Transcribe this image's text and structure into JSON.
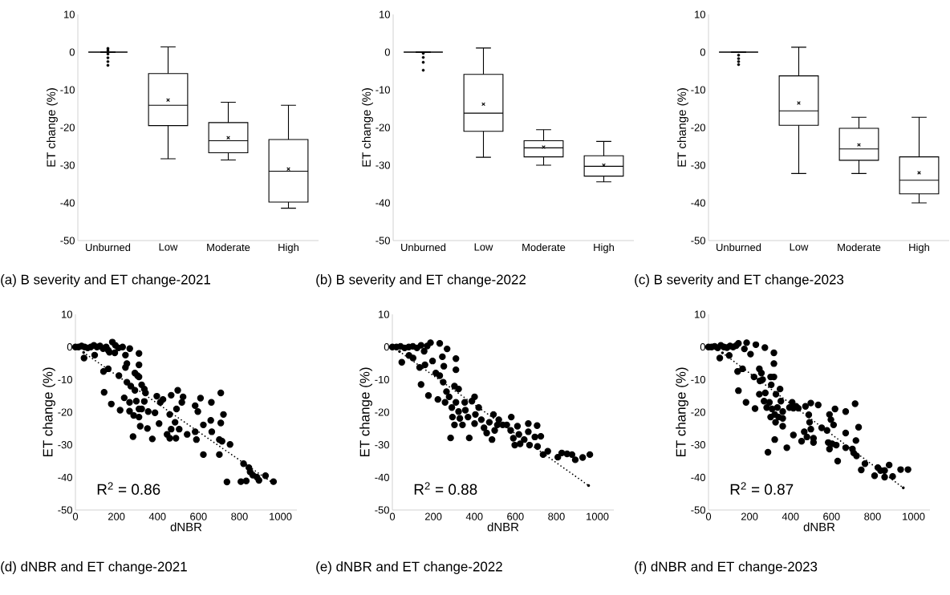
{
  "chart_data": [
    {
      "type": "box",
      "title": "(a) B severity and ET change-2021",
      "ylabel": "ET change (%)",
      "categories": [
        "Unburned",
        "Low",
        "Moderate",
        "High"
      ],
      "color": "#000000",
      "ylim": [
        -50,
        10
      ],
      "yticks": [
        -50,
        -40,
        -30,
        -20,
        -10,
        0,
        10
      ],
      "boxes": [
        {
          "low": 0,
          "q1": 0,
          "median": 0,
          "q3": 0,
          "high": 0,
          "outliers": [
            1,
            0.5,
            -0.5,
            -1.5,
            -2.5,
            -3.5
          ]
        },
        {
          "low": -28.3,
          "q1": -19.5,
          "median": -14.1,
          "q3": -5.7,
          "high": 1.4,
          "mean": -12.7
        },
        {
          "low": -28.6,
          "q1": -26.7,
          "median": -23.5,
          "q3": -18.7,
          "high": -13.3,
          "mean": -22.7
        },
        {
          "low": -41.4,
          "q1": -39.8,
          "median": -31.6,
          "q3": -23.2,
          "high": -14.1,
          "mean": -31
        }
      ]
    },
    {
      "type": "box",
      "title": "(b) B severity and ET change-2022",
      "ylabel": "ET change (%)",
      "categories": [
        "Unburned",
        "Low",
        "Moderate",
        "High"
      ],
      "color": "#000000",
      "ylim": [
        -50,
        10
      ],
      "yticks": [
        -50,
        -40,
        -30,
        -20,
        -10,
        0,
        10
      ],
      "boxes": [
        {
          "low": 0,
          "q1": 0,
          "median": 0,
          "q3": 0,
          "high": 0,
          "outliers": [
            -0.3,
            -1.4,
            -2.7,
            -4.8
          ]
        },
        {
          "low": -27.9,
          "q1": -21,
          "median": -16.2,
          "q3": -5.9,
          "high": 1.1,
          "mean": -13.8
        },
        {
          "low": -30,
          "q1": -27.8,
          "median": -25.4,
          "q3": -23.5,
          "high": -20.6,
          "mean": -25.2
        },
        {
          "low": -34.4,
          "q1": -32.9,
          "median": -30.3,
          "q3": -27.5,
          "high": -23.7,
          "mean": -30
        }
      ]
    },
    {
      "type": "box",
      "title": "(c) B severity and ET change-2023",
      "ylabel": "ET change (%)",
      "categories": [
        "Unburned",
        "Low",
        "Moderate",
        "High"
      ],
      "color": "#000000",
      "ylim": [
        -50,
        10
      ],
      "yticks": [
        -50,
        -40,
        -30,
        -20,
        -10,
        0,
        10
      ],
      "boxes": [
        {
          "low": 0,
          "q1": 0,
          "median": 0,
          "q3": 0,
          "high": 0,
          "outliers": [
            -0.8,
            -1.7,
            -2.5,
            -3.3
          ]
        },
        {
          "low": -32.2,
          "q1": -19.4,
          "median": -15.6,
          "q3": -6.3,
          "high": 1.3,
          "mean": -13.5
        },
        {
          "low": -32.2,
          "q1": -28.7,
          "median": -25.7,
          "q3": -20.2,
          "high": -17.3,
          "mean": -24.6
        },
        {
          "low": -40,
          "q1": -37.6,
          "median": -34,
          "q3": -27.8,
          "high": -17.3,
          "mean": -32
        }
      ]
    },
    {
      "type": "scatter",
      "title": "(d) dNBR and ET change-2021",
      "xlabel": "dNBR",
      "ylabel": "ET change (%)",
      "annotations": [
        "R$^{2}$ = 0.86"
      ],
      "xlim": [
        0,
        1080
      ],
      "xticks": [
        0,
        200,
        400,
        600,
        800,
        1000
      ],
      "ylim": [
        -50,
        10
      ],
      "yticks": [
        -50,
        -40,
        -30,
        -20,
        -10,
        0,
        10
      ],
      "series": [
        {
          "type": "scatter",
          "marker": "circle",
          "color": "#000000",
          "x": [
            0,
            15,
            30,
            45,
            60,
            75,
            90,
            105,
            120,
            135,
            150,
            160,
            180,
            195,
            210,
            230,
            265,
            42,
            94,
            166,
            192,
            244,
            310,
            137,
            160,
            140,
            175,
            212,
            238,
            244,
            251,
            251,
            218,
            264,
            270,
            264,
            281,
            290,
            303,
            310,
            310,
            290,
            297,
            284,
            310,
            310,
            323,
            336,
            323,
            342,
            316,
            351,
            336,
            355,
            375,
            388,
            397,
            408,
            414,
            427,
            447,
            460,
            467,
            460,
            490,
            499,
            493,
            486,
            506,
            467,
            525,
            519,
            545,
            584,
            584,
            597,
            590,
            610,
            624,
            624,
            663,
            665,
            660,
            702,
            709,
            709,
            702,
            722,
            715,
            754,
            739,
            807,
            833,
            820,
            846,
            852,
            865,
            885,
            895,
            927,
            966
          ],
          "values": [
            0,
            0,
            0.3,
            0,
            -0.3,
            0,
            0.5,
            0,
            0.3,
            -0.5,
            0,
            -1,
            1.5,
            0.5,
            -0.3,
            0,
            -0.5,
            -3.4,
            -2.5,
            -1.6,
            -1.8,
            -2.5,
            -2,
            -7.5,
            -6.7,
            -13.9,
            -17.5,
            -8.8,
            -15.6,
            -6.3,
            -5.1,
            -10.8,
            -19.4,
            -17,
            -12,
            -19.7,
            -27.5,
            -8,
            -8.8,
            -5.5,
            -9.2,
            -13.3,
            -16.6,
            -21,
            -19,
            -21.5,
            -11.6,
            -12.9,
            -19,
            -14.1,
            -24.3,
            -25,
            -16.7,
            -19.8,
            -28.2,
            -20.2,
            -15.1,
            -23.5,
            -17,
            -16.1,
            -26.8,
            -20.7,
            -14.8,
            -28,
            -28,
            -13.3,
            -19,
            -23.1,
            -25.2,
            -25.2,
            -15.3,
            -17,
            -26.8,
            -18,
            -26,
            -19.8,
            -28.4,
            -15.7,
            -33,
            -23.9,
            -17,
            -26,
            -22.5,
            -33,
            -14.1,
            -23.3,
            -28.4,
            -20.7,
            -28.9,
            -29.9,
            -41.4,
            -41.3,
            -41.1,
            -35.8,
            -37,
            -38.3,
            -39.3,
            -39.9,
            -40.9,
            -39.5,
            -41.3
          ]
        },
        {
          "type": "line",
          "marker": "none",
          "line_style": "dotted",
          "color": "#000000",
          "x": [
            40,
            960
          ],
          "values": [
            -1.7,
            -41.6
          ]
        }
      ]
    },
    {
      "type": "scatter",
      "title": "(e) dNBR and ET change-2022",
      "xlabel": "dNBR",
      "ylabel": "ET change (%)",
      "annotations": [
        "R$^{2}$ = 0.88"
      ],
      "xlim": [
        0,
        1080
      ],
      "xticks": [
        0,
        200,
        400,
        600,
        800,
        1000
      ],
      "ylim": [
        -50,
        10
      ],
      "yticks": [
        -50,
        -40,
        -30,
        -20,
        -10,
        0,
        10
      ],
      "series": [
        {
          "type": "scatter",
          "marker": "circle",
          "color": "#000000",
          "x": [
            0,
            20,
            40,
            60,
            80,
            100,
            120,
            140,
            155,
            170,
            186,
            231,
            267,
            46,
            81,
            101,
            133,
            159,
            196,
            140,
            176,
            244,
            251,
            212,
            231,
            248,
            310,
            310,
            222,
            257,
            264,
            284,
            277,
            290,
            303,
            323,
            293,
            303,
            310,
            323,
            329,
            342,
            353,
            356,
            375,
            369,
            388,
            401,
            405,
            401,
            421,
            434,
            447,
            460,
            473,
            486,
            493,
            499,
            512,
            519,
            538,
            558,
            580,
            577,
            590,
            597,
            610,
            617,
            623,
            643,
            663,
            663,
            669,
            695,
            706,
            708,
            724,
            735,
            758,
            807,
            826,
            852,
            876,
            892,
            928,
            963
          ],
          "values": [
            0,
            0,
            0.2,
            -0.3,
            0,
            0.2,
            -0.3,
            0.5,
            -1.3,
            0.3,
            1.3,
            1.1,
            -0.6,
            -4.7,
            -2.6,
            -3.4,
            -6.3,
            -5.5,
            -4.3,
            -11.5,
            -14.9,
            -3,
            -5.9,
            -8,
            -8.8,
            -10.8,
            -3.6,
            -7,
            -16.1,
            -17,
            -13.7,
            -27.9,
            -15.3,
            -18.6,
            -12,
            -12.9,
            -21.5,
            -23.9,
            -17,
            -19.8,
            -21.9,
            -23.9,
            -17,
            -19.4,
            -27.9,
            -21.5,
            -16.6,
            -15.3,
            -20.7,
            -23.5,
            -18.6,
            -22.3,
            -24.8,
            -26.4,
            -23.1,
            -28.4,
            -20.7,
            -25.6,
            -23.9,
            -22.3,
            -23.9,
            -23.9,
            -21.5,
            -25.6,
            -28,
            -30.1,
            -24.3,
            -26.8,
            -29.7,
            -28.4,
            -23.5,
            -26,
            -30.1,
            -27.6,
            -24.1,
            -30.5,
            -27.4,
            -33,
            -32,
            -33.8,
            -32.5,
            -32.8,
            -33,
            -34.6,
            -33.9,
            -33
          ]
        },
        {
          "type": "line",
          "marker": "none",
          "line_style": "dotted",
          "color": "#000000",
          "x": [
            35,
            957
          ],
          "values": [
            -1.4,
            -42.5
          ]
        }
      ]
    },
    {
      "type": "scatter",
      "title": "(f) dNBR and ET change-2023",
      "xlabel": "dNBR",
      "ylabel": "ET change (%)",
      "annotations": [
        "R$^{2}$ = 0.87"
      ],
      "xlim": [
        0,
        1080
      ],
      "xticks": [
        0,
        200,
        400,
        600,
        800,
        1000
      ],
      "ylim": [
        -50,
        10
      ],
      "yticks": [
        -50,
        -40,
        -30,
        -20,
        -10,
        0,
        10
      ],
      "series": [
        {
          "type": "scatter",
          "marker": "circle",
          "color": "#000000",
          "x": [
            0,
            15,
            30,
            45,
            60,
            75,
            90,
            105,
            120,
            135,
            146,
            186,
            231,
            175,
            205,
            275,
            319,
            55,
            101,
            142,
            166,
            146,
            183,
            222,
            227,
            248,
            258,
            251,
            264,
            248,
            271,
            277,
            290,
            284,
            303,
            319,
            319,
            306,
            297,
            310,
            303,
            323,
            329,
            349,
            353,
            327,
            323,
            336,
            342,
            362,
            362,
            362,
            382,
            395,
            408,
            414,
            414,
            427,
            438,
            454,
            467,
            473,
            480,
            489,
            499,
            493,
            499,
            512,
            512,
            535,
            552,
            578,
            584,
            590,
            597,
            590,
            603,
            610,
            617,
            623,
            630,
            669,
            669,
            669,
            702,
            708,
            715,
            722,
            719,
            732,
            745,
            763,
            810,
            826,
            839,
            859,
            859,
            881,
            898,
            937,
            973
          ],
          "values": [
            0,
            0,
            0.2,
            -0.3,
            0.5,
            0,
            -0.2,
            0.3,
            0,
            0.4,
            1.1,
            1.3,
            0.7,
            -0.6,
            -2.2,
            -0.2,
            -1.8,
            -3.4,
            -2.6,
            -7.5,
            -6.7,
            -13.4,
            -17,
            -9.2,
            -18.9,
            -6.7,
            -8,
            -10.4,
            -10,
            -14.5,
            -16.6,
            -14.1,
            -32.3,
            -18.6,
            -9.2,
            -9.2,
            -5.1,
            -11.6,
            -17,
            -19,
            -21.5,
            -28.4,
            -14.5,
            -12.9,
            -16.6,
            -23.1,
            -20.7,
            -18.6,
            -21.5,
            -19.8,
            -21.9,
            -24.3,
            -30.9,
            -18.6,
            -17,
            -27,
            -18.8,
            -18.2,
            -18.8,
            -28.9,
            -26,
            -18.2,
            -27.6,
            -20.8,
            -17.2,
            -23.1,
            -25.2,
            -28,
            -29.3,
            -17.8,
            -24.8,
            -25.6,
            -29.3,
            -20.7,
            -22.3,
            -31.3,
            -29.7,
            -23.9,
            -19,
            -30.1,
            -35,
            -19.8,
            -26.4,
            -30.9,
            -31.3,
            -32.5,
            -17.4,
            -33.4,
            -28.7,
            -24.6,
            -37.7,
            -35.8,
            -39.5,
            -37,
            -37.9,
            -37.9,
            -39.9,
            -36.2,
            -39.7,
            -37.6,
            -37.6
          ]
        },
        {
          "type": "line",
          "marker": "none",
          "line_style": "dotted",
          "color": "#000000",
          "x": [
            68,
            950
          ],
          "values": [
            -1.8,
            -43.2
          ]
        }
      ]
    }
  ]
}
